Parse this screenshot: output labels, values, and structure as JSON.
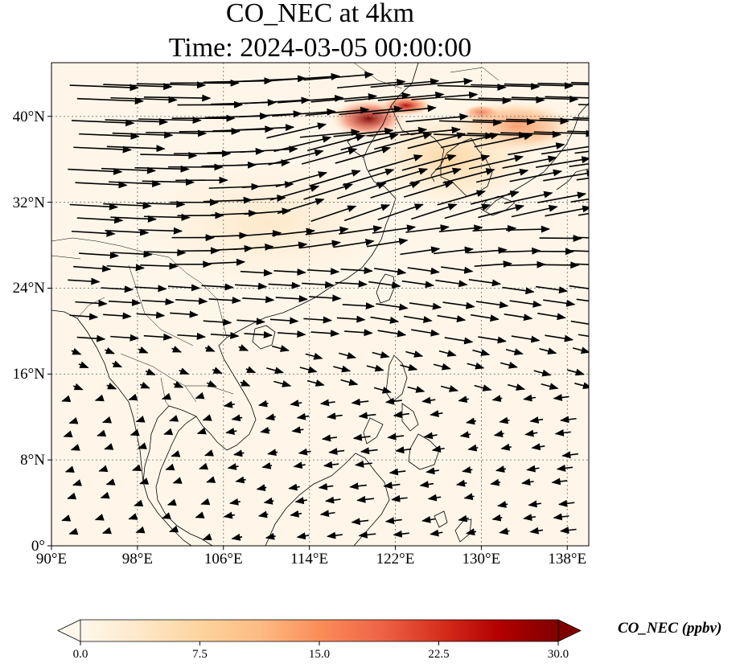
{
  "title_line1": "CO_NEC at 4km",
  "title_line2": "Time: 2024-03-05 00:00:00",
  "map": {
    "lon_range": [
      90,
      140
    ],
    "lat_range": [
      0,
      45
    ],
    "lat_ticks": [
      {
        "value": 40,
        "label": "40°N"
      },
      {
        "value": 32,
        "label": "32°N"
      },
      {
        "value": 24,
        "label": "24°N"
      },
      {
        "value": 16,
        "label": "16°N"
      },
      {
        "value": 8,
        "label": "8°N"
      },
      {
        "value": 0,
        "label": "0°"
      }
    ],
    "lon_ticks": [
      {
        "value": 90,
        "label": "90°E"
      },
      {
        "value": 98,
        "label": "98°E"
      },
      {
        "value": 106,
        "label": "106°E"
      },
      {
        "value": 114,
        "label": "114°E"
      },
      {
        "value": 122,
        "label": "122°E"
      },
      {
        "value": 130,
        "label": "130°E"
      },
      {
        "value": 138,
        "label": "138°E"
      }
    ],
    "gridlines": true,
    "high_co_regions": [
      {
        "lon": 119.5,
        "lat": 39.8,
        "lon_radius": 3.5,
        "lat_radius": 1.8,
        "value": 30
      },
      {
        "lon": 123.0,
        "lat": 41.0,
        "lon_radius": 2.5,
        "lat_radius": 1.0,
        "value": 28
      },
      {
        "lon": 130.0,
        "lat": 40.3,
        "lon_radius": 1.8,
        "lat_radius": 0.8,
        "value": 24
      },
      {
        "lon": 133.0,
        "lat": 39.0,
        "lon_radius": 6.0,
        "lat_radius": 2.5,
        "value": 16
      },
      {
        "lon": 127.0,
        "lat": 36.0,
        "lon_radius": 9.0,
        "lat_radius": 5.0,
        "value": 9
      },
      {
        "lon": 110.0,
        "lat": 30.0,
        "lon_radius": 20.0,
        "lat_radius": 10.0,
        "value": 3
      }
    ]
  },
  "colorbar": {
    "label": "CO_NEC (ppbv)",
    "min": 0,
    "max": 30,
    "extend": "both",
    "ticks": [
      {
        "value": 0,
        "label": "0.0"
      },
      {
        "value": 7.5,
        "label": "7.5"
      },
      {
        "value": 15,
        "label": "15.0"
      },
      {
        "value": 22.5,
        "label": "22.5"
      },
      {
        "value": 30,
        "label": "30.0"
      }
    ],
    "colors": [
      "#fff7ec",
      "#fee8c8",
      "#fdd49e",
      "#fdbb84",
      "#fc8d59",
      "#ef6548",
      "#d7301f",
      "#b30000",
      "#7f0000"
    ]
  }
}
